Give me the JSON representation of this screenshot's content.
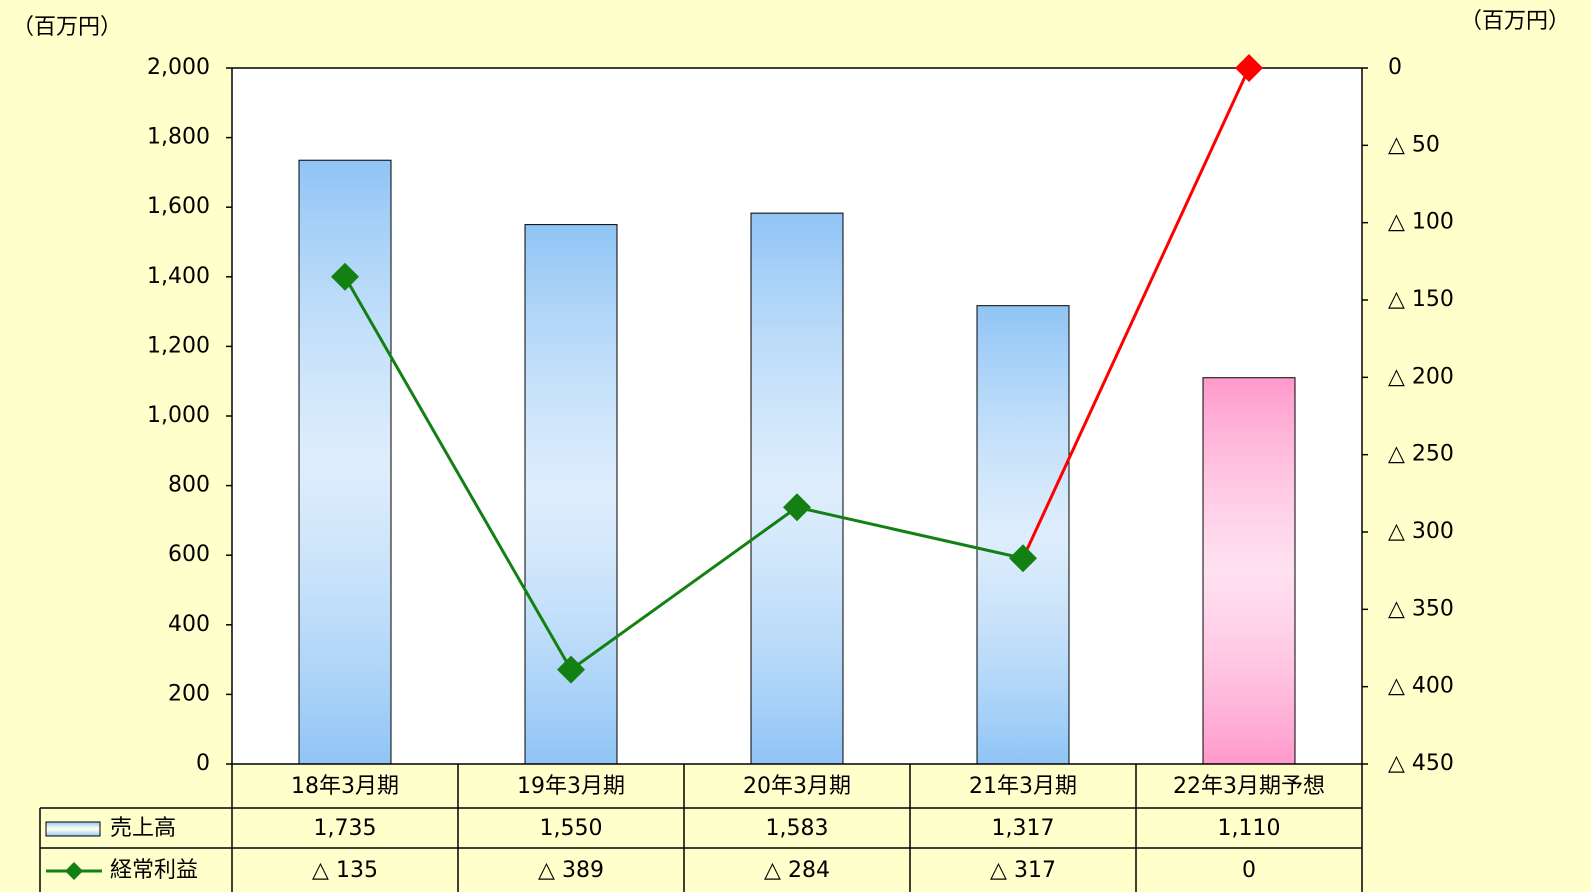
{
  "chart_data": {
    "type": "bar-line",
    "y_label": "（百万円）",
    "y2_label": "（百万円）",
    "categories": [
      "18年3月期",
      "19年3月期",
      "20年3月期",
      "21年3月期",
      "22年3月期予想"
    ],
    "series": [
      {
        "name": "売上高",
        "type": "bar",
        "colors": [
          "#8fc4f5",
          "#8fc4f5",
          "#8fc4f5",
          "#8fc4f5",
          "#ff99cc"
        ],
        "values": [
          1735,
          1550,
          1583,
          1317,
          1110
        ],
        "value_labels": [
          "1,735",
          "1,550",
          "1,583",
          "1,317",
          "1,110"
        ]
      },
      {
        "name": "経常利益",
        "type": "line",
        "axis": "y2",
        "colors": [
          "#138013",
          "#138013",
          "#138013",
          "#138013",
          "#ff0000"
        ],
        "values": [
          -135,
          -389,
          -284,
          -317,
          0
        ],
        "value_labels": [
          "△ 135",
          "△ 389",
          "△ 284",
          "△ 317",
          "0"
        ]
      }
    ],
    "ylim": [
      0,
      2000
    ],
    "yticks": [
      0,
      200,
      400,
      600,
      800,
      {
        "value": 1000,
        "label": "1,000"
      },
      {
        "value": 1200,
        "label": "1,200"
      },
      {
        "value": 1400,
        "label": "1,400"
      },
      {
        "value": 1600,
        "label": "1,600"
      },
      {
        "value": 1800,
        "label": "1,800"
      },
      {
        "value": 2000,
        "label": "2,000"
      }
    ],
    "y2lim": [
      -450,
      0
    ],
    "y2ticks": [
      0,
      {
        "value": -50,
        "label": "△ 50"
      },
      {
        "value": -100,
        "label": "△ 100"
      },
      {
        "value": -150,
        "label": "△ 150"
      },
      {
        "value": -200,
        "label": "△ 200"
      },
      {
        "value": -250,
        "label": "△ 250"
      },
      {
        "value": -300,
        "label": "△ 300"
      },
      {
        "value": -350,
        "label": "△ 350"
      },
      {
        "value": -400,
        "label": "△ 400"
      },
      {
        "value": -450,
        "label": "△ 450"
      }
    ]
  }
}
